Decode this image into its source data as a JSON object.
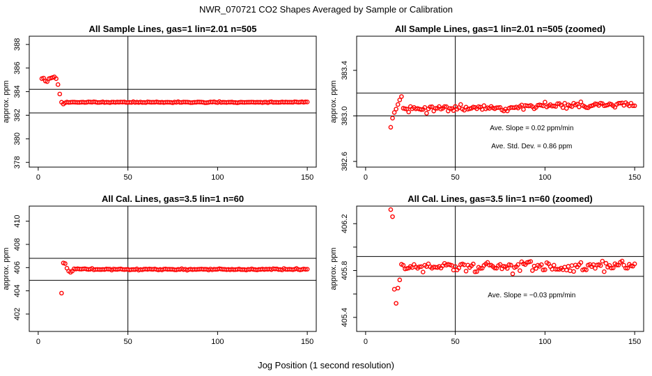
{
  "figure": {
    "title": "NWR_070721  CO2 Shapes Averaged by Sample or Calibration",
    "xlabel": "Jog Position (1 second resolution)",
    "marker_color": "#ff0000",
    "line_color": "#000000"
  },
  "chart_data": [
    {
      "type": "scatter",
      "title": "All Sample Lines, gas=1 lin=2.01 n=505",
      "ylabel": "approx. ppm",
      "xlim": [
        -5,
        155
      ],
      "ylim": [
        377.6,
        388.7
      ],
      "xticks": [
        0,
        50,
        100,
        150
      ],
      "yticks": [
        378,
        380,
        382,
        384,
        386,
        388
      ],
      "vline_x": 50,
      "hlines_y": [
        382.2,
        384.2
      ],
      "annotations": [],
      "points": [
        [
          2,
          385.1
        ],
        [
          3,
          385.15
        ],
        [
          4,
          384.9
        ],
        [
          5,
          384.85
        ],
        [
          6,
          385.1
        ],
        [
          7,
          385.15
        ],
        [
          8,
          385.2
        ],
        [
          9,
          385.25
        ],
        [
          10,
          385.1
        ],
        [
          11,
          384.6
        ],
        [
          12,
          383.8
        ],
        [
          13,
          383.1
        ],
        [
          14,
          382.95
        ],
        [
          15,
          383.05
        ]
      ],
      "flat_from": 16,
      "flat_to": 150,
      "flat_mean": 383.1,
      "flat_jitter": 0.06,
      "seed": 11
    },
    {
      "type": "scatter",
      "title": "All Sample Lines, gas=1 lin=2.01 n=505 (zoomed)",
      "ylabel": "approx. ppm",
      "xlim": [
        -5,
        155
      ],
      "ylim": [
        382.55,
        383.7
      ],
      "xticks": [
        0,
        50,
        100,
        150
      ],
      "yticks": [
        382.6,
        383.0,
        383.4
      ],
      "ytick_labels": [
        "382.6",
        "383.0",
        "383.4"
      ],
      "vline_x": 50,
      "hlines_y": [
        383.0,
        383.2
      ],
      "annotations": [
        "Ave. Slope =  0.02  ppm/min",
        "Ave. Std. Dev. =  0.86  ppm"
      ],
      "points": [
        [
          14,
          382.9
        ],
        [
          15,
          382.98
        ],
        [
          16,
          383.03
        ],
        [
          17,
          383.06
        ],
        [
          18,
          383.1
        ],
        [
          19,
          383.14
        ],
        [
          20,
          383.17
        ]
      ],
      "flat_from": 21,
      "flat_to": 150,
      "flat_mean": 383.08,
      "flat_jitter": 0.045,
      "trend": 0.0004,
      "seed": 23
    },
    {
      "type": "scatter",
      "title": "All Cal. Lines, gas=3.5 lin=1 n=60",
      "ylabel": "approx. ppm",
      "xlim": [
        -5,
        155
      ],
      "ylim": [
        400.5,
        411.3
      ],
      "xticks": [
        0,
        50,
        100,
        150
      ],
      "yticks": [
        402,
        404,
        406,
        408,
        410
      ],
      "vline_x": 50,
      "hlines_y": [
        404.9,
        406.8
      ],
      "annotations": [],
      "points": [
        [
          13,
          403.8
        ],
        [
          14,
          406.4
        ],
        [
          15,
          406.35
        ],
        [
          16,
          405.95
        ],
        [
          17,
          405.7
        ],
        [
          18,
          405.6
        ],
        [
          19,
          405.7
        ]
      ],
      "flat_from": 20,
      "flat_to": 150,
      "flat_mean": 405.85,
      "flat_jitter": 0.09,
      "seed": 37
    },
    {
      "type": "scatter",
      "title": "All Cal. Lines, gas=3.5 lin=1 n=60 (zoomed)",
      "ylabel": "approx. ppm",
      "xlim": [
        -5,
        155
      ],
      "ylim": [
        405.28,
        406.35
      ],
      "xticks": [
        0,
        50,
        100,
        150
      ],
      "yticks": [
        405.4,
        405.6,
        405.8,
        406.0,
        406.2
      ],
      "ytick_labels": [
        "405.4",
        "",
        "405.8",
        "",
        "406.2"
      ],
      "vline_x": 50,
      "hlines_y": [
        405.75,
        405.92
      ],
      "annotations": [
        "Ave. Slope =  −0.03  ppm/min"
      ],
      "points": [
        [
          14,
          406.32
        ],
        [
          15,
          406.26
        ],
        [
          16,
          405.64
        ],
        [
          17,
          405.52
        ],
        [
          18,
          405.65
        ],
        [
          19,
          405.72
        ]
      ],
      "flat_from": 20,
      "flat_to": 150,
      "flat_mean": 405.83,
      "flat_jitter": 0.07,
      "seed": 41
    }
  ]
}
